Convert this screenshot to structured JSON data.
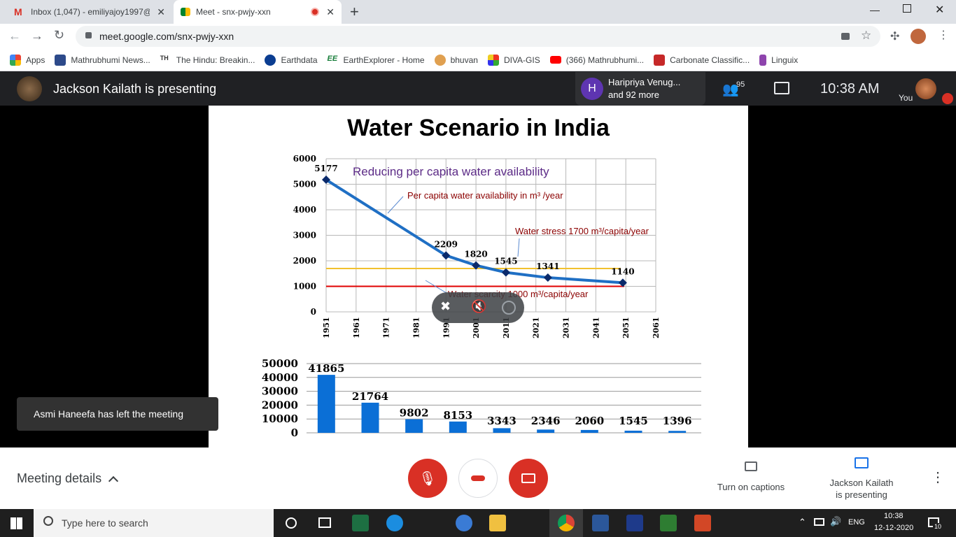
{
  "browser": {
    "tabs": [
      {
        "label": "Inbox (1,047) - emiliyajoy1997@g"
      },
      {
        "label": "Meet - snx-pwjy-xxn"
      }
    ],
    "url": "meet.google.com/snx-pwjy-xxn",
    "bookmarks": [
      "Apps",
      "Mathrubhumi News...",
      "The Hindu: Breakin...",
      "Earthdata",
      "EarthExplorer - Home",
      "bhuvan",
      "DIVA-GIS",
      "(366) Mathrubhumi...",
      "Carbonate Classific...",
      "Linguix"
    ]
  },
  "meet": {
    "presenting_title": "Jackson Kailath is presenting",
    "participant_popup": {
      "initial": "H",
      "line1": "Haripriya Venug...",
      "line2": "and 92 more"
    },
    "participant_count": "95",
    "clock": "10:38  AM",
    "self_label": "You",
    "toast": "Asmi Haneefa has left the meeting",
    "meeting_details": "Meeting details",
    "captions_label": "Turn on captions",
    "presenting_line1": "Jackson Kailath",
    "presenting_line2": "is presenting"
  },
  "slide": {
    "title": "Water Scenario in India"
  },
  "chart_data": [
    {
      "type": "line",
      "title": "Reducing per capita water availability",
      "x_ticks": [
        "1951",
        "1961",
        "1971",
        "1981",
        "1991",
        "2001",
        "2011",
        "2021",
        "2031",
        "2041",
        "2051",
        "2061"
      ],
      "y_ticks": [
        "0",
        "1000",
        "2000",
        "3000",
        "4000",
        "5000",
        "6000"
      ],
      "ylim": [
        0,
        6000
      ],
      "xlim": [
        1951,
        2061
      ],
      "points": [
        {
          "x": 1951,
          "y": 5177,
          "label": "5177"
        },
        {
          "x": 1991,
          "y": 2209,
          "label": "2209"
        },
        {
          "x": 2001,
          "y": 1820,
          "label": "1820"
        },
        {
          "x": 2011,
          "y": 1545,
          "label": "1545"
        },
        {
          "x": 2025,
          "y": 1341,
          "label": "1341"
        },
        {
          "x": 2050,
          "y": 1140,
          "label": "1140"
        }
      ],
      "reference_lines": [
        {
          "y": 1700,
          "color": "#f2c12e"
        },
        {
          "y": 1000,
          "color": "#e00000"
        }
      ],
      "annotations": [
        "Per capita water availability in m³ /year",
        "Water stress 1700 m³/capita/year",
        "Water scarcity 1000 m³/capita/year"
      ],
      "line_color": "#1f6fc4",
      "grid": true
    },
    {
      "type": "bar",
      "values": [
        41865,
        21764,
        9802,
        8153,
        3343,
        2346,
        2060,
        1545,
        1396
      ],
      "labels": [
        "41865",
        "21764",
        "9802",
        "8153",
        "3343",
        "2346",
        "2060",
        "1545",
        "1396"
      ],
      "y_ticks": [
        "0",
        "10000",
        "20000",
        "30000",
        "40000",
        "50000"
      ],
      "ylim": [
        0,
        50000
      ],
      "bar_color": "#0b6fd6",
      "grid": true
    }
  ],
  "taskbar": {
    "search_placeholder": "Type here to search",
    "lang": "ENG",
    "time": "10:38",
    "date": "12-12-2020",
    "notif_count": "10"
  }
}
